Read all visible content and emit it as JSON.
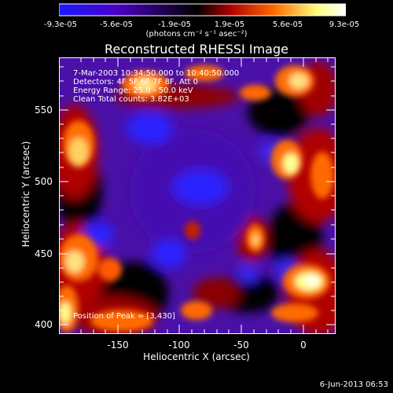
{
  "colorbar": {
    "ticks": [
      "-9.3e-05",
      "-5.6e-05",
      "-1.9e-05",
      "1.9e-05",
      "5.6e-05",
      "9.3e-05"
    ],
    "units_label": "(photons cm⁻² s⁻¹ asec⁻²)",
    "colors": [
      "#1a1aff",
      "#4a00c8",
      "#000000",
      "#b00000",
      "#ff6a00",
      "#ffff80",
      "#ffffff"
    ]
  },
  "plot": {
    "title": "Reconstructed RHESSI Image",
    "overlay": {
      "time": "7-Mar-2003 10:34:50.000 to 10:40:50.000",
      "detectors": "Detectors: 4F 5F 6F 7F 8F, Att 0",
      "energy": "Energy Range: 25.0 - 50.0 keV",
      "clean": "Clean    Total counts: 3.82E+03",
      "peak": "Position of Peak = [3,430]"
    },
    "xlabel": "Heliocentric X (arcsec)",
    "ylabel": "Heliocentric Y (arcsec)",
    "xticks": [
      "-150",
      "-100",
      "-50",
      "0"
    ],
    "yticks": [
      "400",
      "450",
      "500",
      "550"
    ]
  },
  "footer": {
    "timestamp": "6-Jun-2013 06:53"
  }
}
